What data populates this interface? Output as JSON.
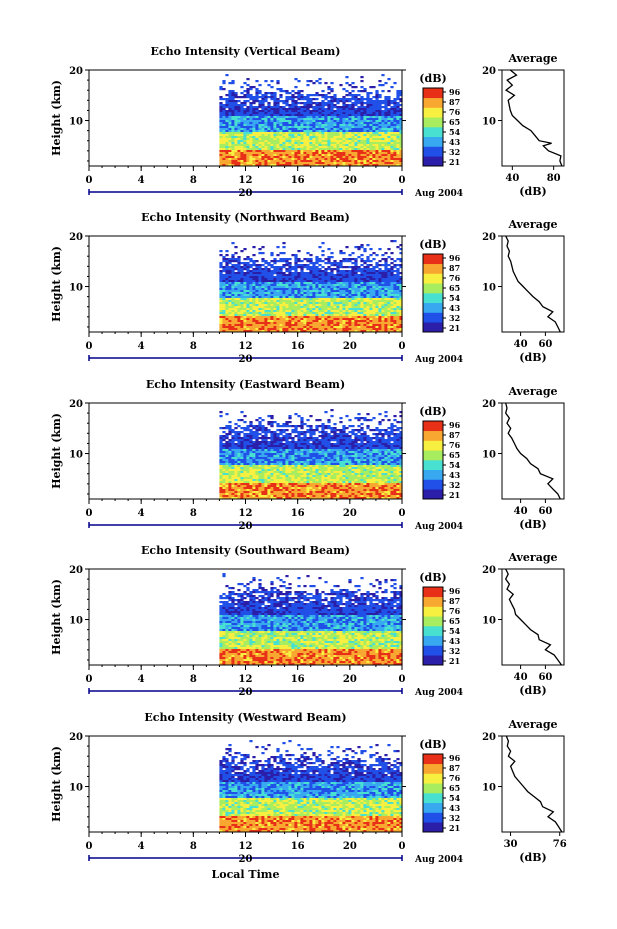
{
  "figure": {
    "xlabel_bottom": "Local Time",
    "date_label": "Aug 2004",
    "day_label": "20",
    "ylabel": "Height (km)",
    "avg_title": "Average",
    "avg_unit": "(dB)",
    "cbar_unit": "(dB)"
  },
  "colors": {
    "cmap": [
      "#2b1ea8",
      "#2050e8",
      "#38a8f0",
      "#48e0d0",
      "#a8ec60",
      "#f8f040",
      "#f8a830",
      "#e83018"
    ]
  },
  "chart_data": [
    {
      "type": "heatmap",
      "title": "Echo Intensity (Vertical Beam)",
      "xlabel": "",
      "ylabel": "Height (km)",
      "xlim": [
        0,
        24
      ],
      "ylim": [
        1,
        20
      ],
      "xticks": [
        "0",
        "4",
        "8",
        "12",
        "16",
        "20",
        "0"
      ],
      "yticks": [
        "10",
        "20"
      ],
      "data_start_hour": 10,
      "colorbar": {
        "label": "(dB)",
        "ticks": [
          "96",
          "87",
          "76",
          "65",
          "54",
          "43",
          "32",
          "21"
        ]
      },
      "avg": {
        "title": "Average",
        "xlabel": "(dB)",
        "xticks": [
          "40",
          "80"
        ],
        "xlim": [
          30,
          90
        ],
        "profile": [
          [
            88,
            1
          ],
          [
            86,
            2
          ],
          [
            87,
            3
          ],
          [
            75,
            4
          ],
          [
            70,
            5
          ],
          [
            78,
            5.5
          ],
          [
            66,
            6
          ],
          [
            62,
            7
          ],
          [
            58,
            8
          ],
          [
            50,
            9
          ],
          [
            45,
            10
          ],
          [
            40,
            11
          ],
          [
            38,
            12
          ],
          [
            36,
            14
          ],
          [
            42,
            15
          ],
          [
            34,
            16
          ],
          [
            40,
            17
          ],
          [
            35,
            18
          ],
          [
            44,
            19
          ],
          [
            38,
            20
          ]
        ]
      }
    },
    {
      "type": "heatmap",
      "title": "Echo Intensity (Northward Beam)",
      "xlabel": "",
      "ylabel": "Height (km)",
      "xlim": [
        0,
        24
      ],
      "ylim": [
        1,
        20
      ],
      "xticks": [
        "0",
        "4",
        "8",
        "12",
        "16",
        "20",
        "0"
      ],
      "yticks": [
        "10",
        "20"
      ],
      "data_start_hour": 10,
      "colorbar": {
        "label": "(dB)",
        "ticks": [
          "96",
          "87",
          "76",
          "65",
          "54",
          "43",
          "32",
          "21"
        ]
      },
      "avg": {
        "title": "Average",
        "xlabel": "(dB)",
        "xticks": [
          "40",
          "60"
        ],
        "xlim": [
          25,
          75
        ],
        "profile": [
          [
            72,
            1
          ],
          [
            70,
            2
          ],
          [
            68,
            3
          ],
          [
            62,
            4
          ],
          [
            66,
            5
          ],
          [
            58,
            6
          ],
          [
            55,
            7
          ],
          [
            50,
            8
          ],
          [
            46,
            9
          ],
          [
            42,
            10
          ],
          [
            38,
            11
          ],
          [
            36,
            12
          ],
          [
            34,
            13
          ],
          [
            32,
            15
          ],
          [
            30,
            16
          ],
          [
            31,
            17
          ],
          [
            29,
            18
          ],
          [
            30,
            19
          ],
          [
            28,
            20
          ]
        ]
      }
    },
    {
      "type": "heatmap",
      "title": "Echo Intensity (Eastward Beam)",
      "xlabel": "",
      "ylabel": "Height (km)",
      "xlim": [
        0,
        24
      ],
      "ylim": [
        1,
        20
      ],
      "xticks": [
        "0",
        "4",
        "8",
        "12",
        "16",
        "20",
        "0"
      ],
      "yticks": [
        "10",
        "20"
      ],
      "data_start_hour": 10,
      "colorbar": {
        "label": "(dB)",
        "ticks": [
          "96",
          "87",
          "76",
          "65",
          "54",
          "43",
          "32",
          "21"
        ]
      },
      "avg": {
        "title": "Average",
        "xlabel": "(dB)",
        "xticks": [
          "40",
          "60"
        ],
        "xlim": [
          25,
          75
        ],
        "profile": [
          [
            72,
            1
          ],
          [
            70,
            2
          ],
          [
            66,
            3
          ],
          [
            62,
            4
          ],
          [
            66,
            5
          ],
          [
            56,
            6
          ],
          [
            54,
            7
          ],
          [
            48,
            8
          ],
          [
            45,
            9
          ],
          [
            40,
            10
          ],
          [
            37,
            11
          ],
          [
            35,
            12
          ],
          [
            33,
            13
          ],
          [
            30,
            14
          ],
          [
            32,
            15
          ],
          [
            29,
            16
          ],
          [
            31,
            17
          ],
          [
            28,
            18
          ],
          [
            29,
            19
          ],
          [
            28,
            20
          ]
        ]
      }
    },
    {
      "type": "heatmap",
      "title": "Echo Intensity (Southward Beam)",
      "xlabel": "",
      "ylabel": "Height (km)",
      "xlim": [
        0,
        24
      ],
      "ylim": [
        1,
        20
      ],
      "xticks": [
        "0",
        "4",
        "8",
        "12",
        "16",
        "20",
        "0"
      ],
      "yticks": [
        "10",
        "20"
      ],
      "data_start_hour": 10,
      "colorbar": {
        "label": "(dB)",
        "ticks": [
          "96",
          "87",
          "76",
          "65",
          "54",
          "43",
          "32",
          "21"
        ]
      },
      "avg": {
        "title": "Average",
        "xlabel": "(dB)",
        "xticks": [
          "40",
          "60"
        ],
        "xlim": [
          25,
          75
        ],
        "profile": [
          [
            73,
            1
          ],
          [
            70,
            2
          ],
          [
            67,
            3
          ],
          [
            60,
            4
          ],
          [
            64,
            5
          ],
          [
            55,
            6
          ],
          [
            54,
            7
          ],
          [
            48,
            8
          ],
          [
            44,
            9
          ],
          [
            40,
            10
          ],
          [
            36,
            11
          ],
          [
            35,
            12
          ],
          [
            33,
            13
          ],
          [
            31,
            14
          ],
          [
            34,
            15
          ],
          [
            29,
            16
          ],
          [
            31,
            17
          ],
          [
            28,
            18
          ],
          [
            30,
            19
          ],
          [
            28,
            20
          ]
        ]
      }
    },
    {
      "type": "heatmap",
      "title": "Echo Intensity (Westward Beam)",
      "xlabel": "Local Time",
      "ylabel": "Height (km)",
      "xlim": [
        0,
        24
      ],
      "ylim": [
        1,
        20
      ],
      "xticks": [
        "0",
        "4",
        "8",
        "12",
        "16",
        "20",
        "0"
      ],
      "yticks": [
        "10",
        "20"
      ],
      "data_start_hour": 10,
      "colorbar": {
        "label": "(dB)",
        "ticks": [
          "96",
          "87",
          "76",
          "65",
          "54",
          "43",
          "32",
          "21"
        ]
      },
      "avg": {
        "title": "Average",
        "xlabel": "(dB)",
        "xticks": [
          "30",
          "76"
        ],
        "xlim": [
          22,
          80
        ],
        "profile": [
          [
            78,
            1
          ],
          [
            75,
            2
          ],
          [
            72,
            3
          ],
          [
            65,
            4
          ],
          [
            70,
            5
          ],
          [
            60,
            6
          ],
          [
            58,
            7
          ],
          [
            52,
            8
          ],
          [
            46,
            9
          ],
          [
            42,
            10
          ],
          [
            38,
            11
          ],
          [
            34,
            12
          ],
          [
            32,
            13
          ],
          [
            30,
            14
          ],
          [
            34,
            15
          ],
          [
            28,
            16
          ],
          [
            30,
            17
          ],
          [
            27,
            18
          ],
          [
            28,
            19
          ],
          [
            26,
            20
          ]
        ]
      }
    }
  ]
}
